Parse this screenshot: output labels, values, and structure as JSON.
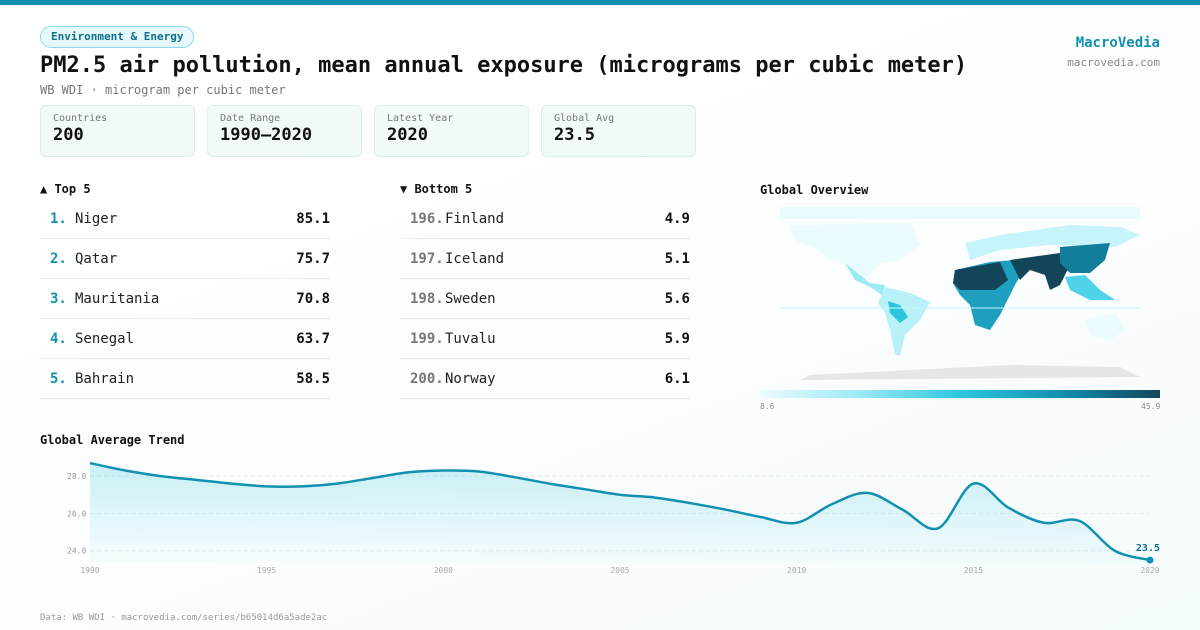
{
  "category": "Environment & Energy",
  "title": "PM2.5 air pollution, mean annual exposure (micrograms per cubic meter)",
  "subtitle": "WB WDI · microgram per cubic meter",
  "brand": {
    "name": "MacroVedia",
    "url": "macrovedia.com"
  },
  "stats": [
    {
      "label": "Countries",
      "value": "200"
    },
    {
      "label": "Date Range",
      "value": "1990–2020"
    },
    {
      "label": "Latest Year",
      "value": "2020"
    },
    {
      "label": "Global Avg",
      "value": "23.5"
    }
  ],
  "top": {
    "title": "▲ Top 5",
    "items": [
      {
        "rank": "1.",
        "name": "Niger",
        "value": "85.1"
      },
      {
        "rank": "2.",
        "name": "Qatar",
        "value": "75.7"
      },
      {
        "rank": "3.",
        "name": "Mauritania",
        "value": "70.8"
      },
      {
        "rank": "4.",
        "name": "Senegal",
        "value": "63.7"
      },
      {
        "rank": "5.",
        "name": "Bahrain",
        "value": "58.5"
      }
    ]
  },
  "bottom": {
    "title": "▼ Bottom 5",
    "items": [
      {
        "rank": "196.",
        "name": "Finland",
        "value": "4.9"
      },
      {
        "rank": "197.",
        "name": "Iceland",
        "value": "5.1"
      },
      {
        "rank": "198.",
        "name": "Sweden",
        "value": "5.6"
      },
      {
        "rank": "199.",
        "name": "Tuvalu",
        "value": "5.9"
      },
      {
        "rank": "200.",
        "name": "Norway",
        "value": "6.1"
      }
    ]
  },
  "map": {
    "title": "Global Overview",
    "legend_min": "8.6",
    "legend_max": "45.9"
  },
  "footer": "Data: WB WDI · macrovedia.com/series/b65014d6a5ade2ac",
  "colors": {
    "accent": "#1290b0",
    "fill": "#cdeff5"
  },
  "chart_data": {
    "type": "area",
    "title": "Global Average Trend",
    "x": [
      1990,
      1991,
      1992,
      1993,
      1994,
      1995,
      1996,
      1997,
      1998,
      1999,
      2000,
      2001,
      2002,
      2003,
      2004,
      2005,
      2006,
      2007,
      2008,
      2009,
      2010,
      2011,
      2012,
      2013,
      2014,
      2015,
      2016,
      2017,
      2018,
      2019,
      2020
    ],
    "values": [
      28.7,
      28.3,
      28.0,
      27.8,
      27.6,
      27.45,
      27.45,
      27.6,
      27.9,
      28.2,
      28.3,
      28.25,
      27.95,
      27.6,
      27.3,
      27.0,
      26.85,
      26.55,
      26.2,
      25.8,
      25.5,
      26.5,
      27.1,
      26.2,
      25.2,
      27.6,
      26.3,
      25.5,
      25.6,
      24.0,
      23.5
    ],
    "yticks": [
      "24.0",
      "26.0",
      "28.0"
    ],
    "xticks": [
      "1990",
      "1995",
      "2000",
      "2005",
      "2010",
      "2015",
      "2020"
    ],
    "ylim": [
      22.7,
      29.4
    ],
    "last_label": "23.5"
  }
}
